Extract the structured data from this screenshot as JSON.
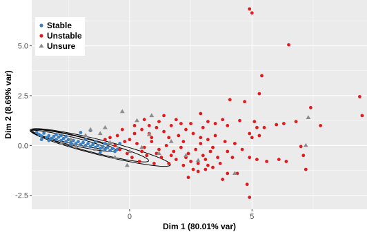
{
  "chart_data": {
    "type": "scatter",
    "title": "",
    "xlabel": "Dim 1 (80.01% var)",
    "ylabel": "Dim 2 (8.69% var)",
    "xlim": [
      -4.0,
      9.7
    ],
    "ylim": [
      -3.2,
      7.3
    ],
    "x_ticks": [
      0,
      5
    ],
    "x_tick_labels": [
      "0",
      "5"
    ],
    "y_ticks": [
      -2.5,
      0.0,
      2.5,
      5.0
    ],
    "y_tick_labels": [
      "-2.5",
      "0.0",
      "2.5",
      "5.0"
    ],
    "grid": true,
    "legend_position": "top-left",
    "colors": {
      "panel": "#ebebeb",
      "grid": "#ffffff",
      "stable": "#3a7fc0",
      "unstable": "#e31a1c",
      "unsure": "#8c8c8c",
      "ellipse": "#000000"
    },
    "series": [
      {
        "name": "Stable",
        "marker": "circle",
        "points": [
          [
            -3.8,
            0.65
          ],
          [
            -3.7,
            0.55
          ],
          [
            -3.6,
            0.48
          ],
          [
            -3.5,
            0.62
          ],
          [
            -3.4,
            0.4
          ],
          [
            -3.3,
            0.5
          ],
          [
            -3.2,
            0.35
          ],
          [
            -3.1,
            0.45
          ],
          [
            -3.0,
            0.3
          ],
          [
            -2.9,
            0.42
          ],
          [
            -2.8,
            0.25
          ],
          [
            -2.7,
            0.35
          ],
          [
            -2.6,
            0.2
          ],
          [
            -2.5,
            0.3
          ],
          [
            -2.4,
            0.15
          ],
          [
            -2.3,
            0.25
          ],
          [
            -2.2,
            0.1
          ],
          [
            -2.1,
            0.2
          ],
          [
            -2.0,
            0.05
          ],
          [
            -1.9,
            0.15
          ],
          [
            -1.8,
            0.0
          ],
          [
            -1.7,
            0.1
          ],
          [
            -1.6,
            -0.05
          ],
          [
            -1.5,
            0.05
          ],
          [
            -1.4,
            -0.1
          ],
          [
            -1.3,
            0.0
          ],
          [
            -1.2,
            -0.15
          ],
          [
            -1.1,
            -0.05
          ],
          [
            -1.0,
            -0.2
          ],
          [
            -0.9,
            -0.1
          ],
          [
            -0.8,
            -0.25
          ],
          [
            -0.7,
            -0.15
          ],
          [
            -0.6,
            -0.3
          ],
          [
            -0.5,
            -0.2
          ],
          [
            -2.0,
            0.65
          ],
          [
            -1.6,
            0.75
          ],
          [
            -3.6,
            0.3
          ],
          [
            -3.0,
            0.55
          ],
          [
            -2.6,
            0.45
          ],
          [
            -2.2,
            -0.05
          ],
          [
            -1.8,
            0.3
          ],
          [
            -1.4,
            0.2
          ],
          [
            -0.4,
            0.1
          ],
          [
            -1.0,
            0.1
          ],
          [
            -2.4,
            0.05
          ],
          [
            -3.3,
            0.25
          ],
          [
            -2.8,
            0.5
          ],
          [
            -1.2,
            -0.35
          ]
        ]
      },
      {
        "name": "Unstable",
        "marker": "circle",
        "points": [
          [
            4.9,
            6.85
          ],
          [
            5.0,
            6.65
          ],
          [
            6.5,
            5.05
          ],
          [
            5.4,
            3.5
          ],
          [
            5.3,
            2.6
          ],
          [
            4.7,
            2.2
          ],
          [
            4.1,
            2.3
          ],
          [
            2.9,
            1.6
          ],
          [
            3.8,
            1.3
          ],
          [
            3.2,
            1.2
          ],
          [
            3.5,
            1.1
          ],
          [
            4.0,
            1.0
          ],
          [
            4.5,
            1.25
          ],
          [
            5.1,
            1.2
          ],
          [
            5.2,
            0.9
          ],
          [
            5.5,
            0.9
          ],
          [
            6.0,
            1.05
          ],
          [
            6.3,
            1.1
          ],
          [
            6.8,
            1.2
          ],
          [
            7.4,
            1.9
          ],
          [
            7.8,
            1.0
          ],
          [
            9.4,
            2.45
          ],
          [
            9.5,
            1.5
          ],
          [
            4.9,
            0.6
          ],
          [
            5.0,
            0.4
          ],
          [
            5.3,
            0.5
          ],
          [
            4.6,
            -0.2
          ],
          [
            4.9,
            -0.6
          ],
          [
            5.2,
            -0.7
          ],
          [
            5.6,
            -0.8
          ],
          [
            6.1,
            -0.7
          ],
          [
            6.4,
            -0.8
          ],
          [
            7.0,
            -0.05
          ],
          [
            7.1,
            -0.5
          ],
          [
            7.2,
            -1.2
          ],
          [
            4.8,
            -1.95
          ],
          [
            4.9,
            -2.6
          ],
          [
            3.8,
            -1.7
          ],
          [
            4.0,
            -1.4
          ],
          [
            4.4,
            -1.4
          ],
          [
            2.4,
            -1.6
          ],
          [
            2.8,
            -1.3
          ],
          [
            3.1,
            -1.2
          ],
          [
            3.4,
            -1.1
          ],
          [
            3.7,
            -0.9
          ],
          [
            4.2,
            -0.6
          ],
          [
            0.2,
            1.0
          ],
          [
            0.5,
            0.8
          ],
          [
            0.8,
            0.6
          ],
          [
            1.1,
            0.9
          ],
          [
            1.4,
            0.7
          ],
          [
            1.7,
            1.0
          ],
          [
            2.0,
            0.5
          ],
          [
            2.3,
            0.8
          ],
          [
            2.6,
            0.6
          ],
          [
            2.9,
            0.4
          ],
          [
            3.2,
            0.3
          ],
          [
            3.5,
            0.5
          ],
          [
            3.9,
            0.2
          ],
          [
            4.3,
            0.1
          ],
          [
            0.0,
            0.3
          ],
          [
            0.3,
            0.1
          ],
          [
            0.6,
            -0.1
          ],
          [
            0.9,
            0.2
          ],
          [
            1.2,
            -0.2
          ],
          [
            1.5,
            0.0
          ],
          [
            1.8,
            -0.3
          ],
          [
            2.1,
            -0.1
          ],
          [
            2.4,
            -0.4
          ],
          [
            2.7,
            -0.2
          ],
          [
            3.0,
            -0.5
          ],
          [
            3.3,
            -0.3
          ],
          [
            3.6,
            -0.6
          ],
          [
            4.0,
            -0.3
          ],
          [
            -0.5,
            0.5
          ],
          [
            -0.3,
            0.8
          ],
          [
            -0.2,
            0.2
          ],
          [
            -0.6,
            0.0
          ],
          [
            -0.8,
            0.4
          ],
          [
            -1.0,
            0.3
          ],
          [
            0.1,
            -0.6
          ],
          [
            0.4,
            -0.8
          ],
          [
            0.7,
            -0.5
          ],
          [
            1.0,
            -0.9
          ],
          [
            1.3,
            -0.6
          ],
          [
            1.6,
            -0.9
          ],
          [
            1.9,
            -0.7
          ],
          [
            2.2,
            -1.0
          ],
          [
            2.5,
            -0.8
          ],
          [
            2.8,
            -0.9
          ],
          [
            3.1,
            -0.7
          ],
          [
            1.2,
            1.2
          ],
          [
            0.6,
            1.3
          ],
          [
            1.9,
            1.3
          ],
          [
            2.5,
            1.1
          ],
          [
            3.0,
            0.9
          ],
          [
            0.2,
            0.6
          ],
          [
            0.9,
            0.4
          ],
          [
            1.6,
            0.4
          ],
          [
            2.2,
            0.2
          ],
          [
            2.9,
            0.1
          ],
          [
            3.4,
            -0.1
          ],
          [
            0.5,
            -0.3
          ],
          [
            1.1,
            -0.4
          ],
          [
            1.7,
            -0.5
          ],
          [
            2.3,
            -0.6
          ],
          [
            2.6,
            -1.2
          ],
          [
            3.2,
            -1.0
          ],
          [
            -0.1,
            -0.4
          ],
          [
            -0.4,
            -0.2
          ],
          [
            0.8,
            1.0
          ],
          [
            1.4,
            1.5
          ],
          [
            2.1,
            1.1
          ]
        ]
      },
      {
        "name": "Unsure",
        "marker": "triangle",
        "points": [
          [
            -0.3,
            1.7
          ],
          [
            0.9,
            1.5
          ],
          [
            0.8,
            0.55
          ],
          [
            0.3,
            1.25
          ],
          [
            -1.6,
            0.8
          ],
          [
            -0.1,
            -1.0
          ],
          [
            2.8,
            -0.75
          ],
          [
            7.3,
            1.4
          ],
          [
            7.2,
            0.0
          ],
          [
            4.3,
            -1.4
          ],
          [
            -2.2,
            -0.05
          ],
          [
            -1.8,
            0.5
          ],
          [
            -1.2,
            0.6
          ],
          [
            -0.8,
            0.15
          ],
          [
            0.0,
            -0.3
          ],
          [
            0.5,
            -0.1
          ],
          [
            1.2,
            -0.4
          ],
          [
            -2.8,
            0.1
          ],
          [
            -1.4,
            -0.2
          ],
          [
            -0.6,
            -0.6
          ],
          [
            1.7,
            0.2
          ],
          [
            2.3,
            -0.5
          ],
          [
            -1.0,
            0.9
          ],
          [
            -2.4,
            0.3
          ]
        ]
      }
    ],
    "ellipses": [
      {
        "group": "Stable",
        "center": [
          -2.5,
          0.3
        ],
        "semi_major": 1.6,
        "semi_minor": 0.16,
        "angle_deg": -16
      },
      {
        "group": "Stable",
        "center": [
          -2.3,
          0.25
        ],
        "semi_major": 1.8,
        "semi_minor": 0.24,
        "angle_deg": -16
      },
      {
        "group": "Unsure",
        "center": [
          -1.6,
          0.0
        ],
        "semi_major": 2.5,
        "semi_minor": 0.3,
        "angle_deg": -18
      },
      {
        "group": "Unsure",
        "center": [
          -1.2,
          -0.1
        ],
        "semi_major": 3.0,
        "semi_minor": 0.37,
        "angle_deg": -17
      }
    ]
  }
}
